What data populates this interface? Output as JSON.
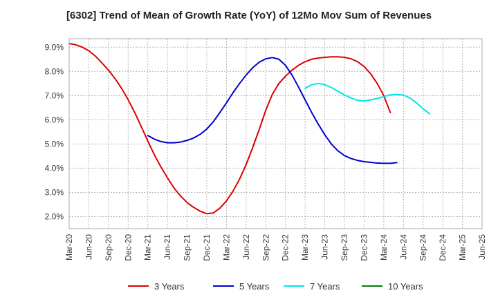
{
  "chart_data": {
    "type": "line",
    "title": "[6302]  Trend of Mean of Growth Rate (YoY) of 12Mo Mov Sum of Revenues",
    "xlabel": "",
    "ylabel": "",
    "x_ticks": [
      "Mar-20",
      "Jun-20",
      "Sep-20",
      "Dec-20",
      "Mar-21",
      "Jun-21",
      "Sep-21",
      "Dec-21",
      "Mar-22",
      "Jun-22",
      "Sep-22",
      "Dec-22",
      "Mar-23",
      "Jun-23",
      "Sep-23",
      "Dec-23",
      "Mar-24",
      "Jun-24",
      "Sep-24",
      "Dec-24",
      "Mar-25",
      "Jun-25"
    ],
    "y_ticks": [
      "2.0%",
      "3.0%",
      "4.0%",
      "5.0%",
      "6.0%",
      "7.0%",
      "8.0%",
      "9.0%"
    ],
    "ylim": [
      1.5,
      9.35
    ],
    "grid": true,
    "legend_position": "bottom",
    "series": [
      {
        "name": "3 Years",
        "color": "#dd0000",
        "start_index": 0,
        "values": [
          9.15,
          9.1,
          9.0,
          8.85,
          8.63,
          8.35,
          8.05,
          7.7,
          7.3,
          6.83,
          6.3,
          5.72,
          5.12,
          4.55,
          4.05,
          3.6,
          3.18,
          2.85,
          2.58,
          2.38,
          2.22,
          2.12,
          2.15,
          2.35,
          2.65,
          3.05,
          3.55,
          4.15,
          4.85,
          5.6,
          6.4,
          7.05,
          7.5,
          7.8,
          8.05,
          8.25,
          8.4,
          8.5,
          8.55,
          8.58,
          8.6,
          8.6,
          8.58,
          8.52,
          8.4,
          8.2,
          7.9,
          7.5,
          7.0,
          6.3
        ]
      },
      {
        "name": "5 Years",
        "color": "#0000cc",
        "start_index": 12,
        "values": [
          5.35,
          5.2,
          5.1,
          5.05,
          5.05,
          5.08,
          5.15,
          5.25,
          5.4,
          5.62,
          5.92,
          6.3,
          6.7,
          7.12,
          7.5,
          7.85,
          8.15,
          8.38,
          8.52,
          8.57,
          8.5,
          8.25,
          7.85,
          7.35,
          6.82,
          6.3,
          5.82,
          5.38,
          5.0,
          4.72,
          4.52,
          4.4,
          4.32,
          4.27,
          4.24,
          4.21,
          4.2,
          4.2,
          4.23
        ]
      },
      {
        "name": "7 Years",
        "color": "#00e5e5",
        "start_index": 36,
        "values": [
          7.3,
          7.45,
          7.5,
          7.45,
          7.33,
          7.18,
          7.03,
          6.9,
          6.8,
          6.78,
          6.82,
          6.88,
          6.96,
          7.03,
          7.05,
          7.02,
          6.9,
          6.7,
          6.45,
          6.25
        ]
      },
      {
        "name": "10 Years",
        "color": "#008000",
        "start_index": 0,
        "values": []
      }
    ]
  }
}
